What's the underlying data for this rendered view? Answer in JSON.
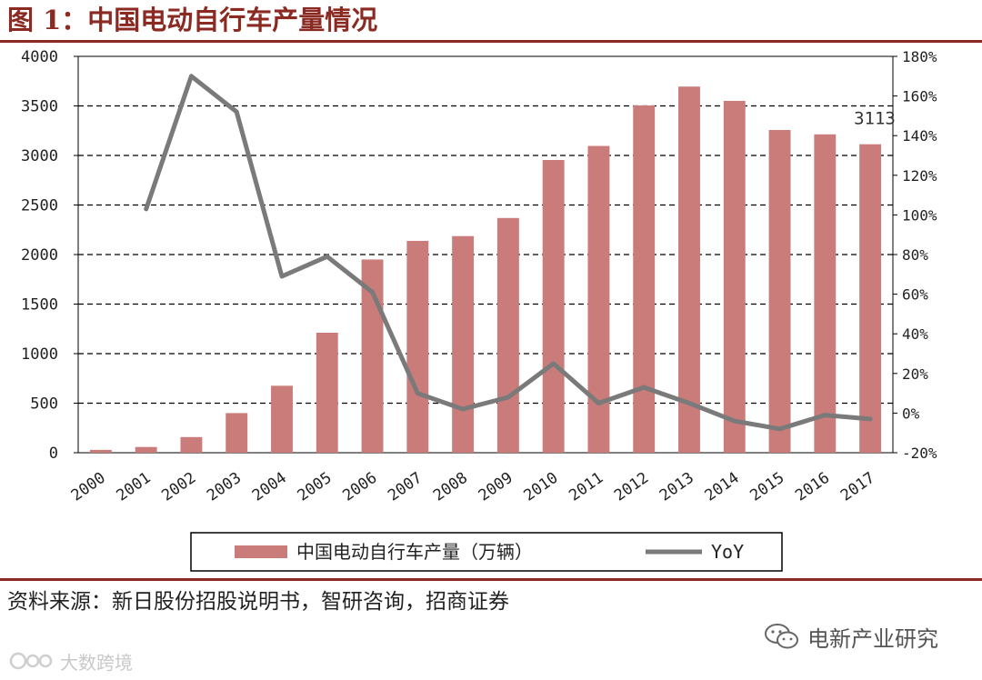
{
  "figure": {
    "title": "图 1：中国电动自行车产量情况",
    "source": "资料来源：新日股份招股说明书，智研咨询，招商证券"
  },
  "wechat": {
    "account_name": "电新产业研究",
    "icon": "wechat-icon"
  },
  "watermark": {
    "text": "大数跨境",
    "icon": "brand-logo-icon"
  },
  "colors": {
    "title": "#8b2a22",
    "bar": "#c97c7a",
    "line": "#7a7a7a",
    "grid": "#000000"
  },
  "chart_data": {
    "type": "bar",
    "categories": [
      "2000",
      "2001",
      "2002",
      "2003",
      "2004",
      "2005",
      "2006",
      "2007",
      "2008",
      "2009",
      "2010",
      "2011",
      "2012",
      "2013",
      "2014",
      "2015",
      "2016",
      "2017"
    ],
    "series": [
      {
        "name": "中国电动自行车产量（万辆）",
        "type": "bar",
        "axis": "left",
        "values": [
          29,
          58,
          158,
          400,
          676,
          1211,
          1950,
          2138,
          2186,
          2369,
          2954,
          3096,
          3505,
          3695,
          3551,
          3257,
          3213,
          3113
        ]
      },
      {
        "name": "YoY",
        "type": "line",
        "axis": "right",
        "values": [
          null,
          1.03,
          1.7,
          1.52,
          0.69,
          0.79,
          0.61,
          0.1,
          0.02,
          0.08,
          0.25,
          0.05,
          0.13,
          0.05,
          -0.04,
          -0.08,
          -0.01,
          -0.03
        ]
      }
    ],
    "data_labels": [
      {
        "category": "2017",
        "text": "3113"
      }
    ],
    "y_left": {
      "min": 0,
      "max": 4000,
      "ticks": [
        "0",
        "500",
        "1000",
        "1500",
        "2000",
        "2500",
        "3000",
        "3500",
        "4000"
      ]
    },
    "y_right": {
      "min": -0.2,
      "max": 1.8,
      "ticks": [
        "-20%",
        "0%",
        "20%",
        "40%",
        "60%",
        "80%",
        "100%",
        "120%",
        "140%",
        "160%",
        "180%"
      ]
    },
    "grid": true,
    "legend_position": "bottom"
  }
}
